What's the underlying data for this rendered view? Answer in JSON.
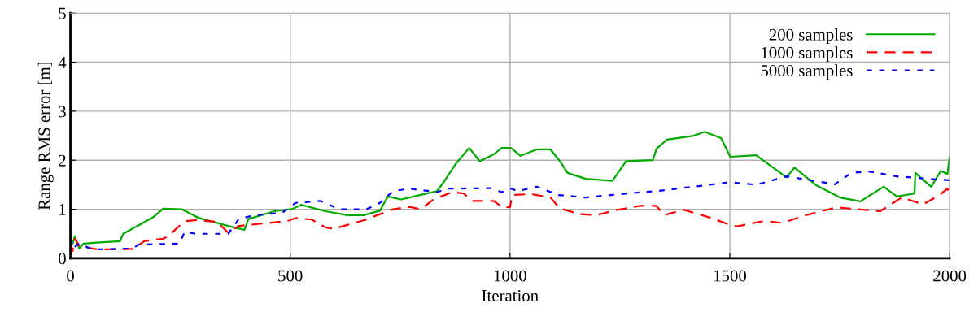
{
  "chart_data": {
    "type": "line",
    "xlabel": "Iteration",
    "ylabel": "Range RMS error [m]",
    "xlim": [
      0,
      2000
    ],
    "ylim": [
      0,
      5
    ],
    "xticks": [
      0,
      500,
      1000,
      1500,
      2000
    ],
    "yticks": [
      0,
      1,
      2,
      3,
      4,
      5
    ],
    "grid": true,
    "legend": "top right",
    "marker": "none",
    "series": [
      {
        "name": "200 samples",
        "color": "#00aa00",
        "line_style": "solid",
        "x": [
          0,
          5,
          10,
          20,
          30,
          60,
          113,
          120,
          187,
          211,
          253,
          290,
          359,
          396,
          405,
          464,
          506,
          525,
          580,
          630,
          667,
          704,
          722,
          752,
          834,
          852,
          876,
          907,
          931,
          963,
          981,
          1002,
          1024,
          1061,
          1092,
          1116,
          1131,
          1172,
          1233,
          1264,
          1325,
          1333,
          1357,
          1418,
          1443,
          1480,
          1501,
          1560,
          1629,
          1647,
          1695,
          1750,
          1797,
          1850,
          1880,
          1920,
          1922,
          1958,
          1980,
          1995,
          2000
        ],
        "values": [
          0.4,
          0.3,
          0.45,
          0.2,
          0.3,
          0.32,
          0.35,
          0.5,
          0.83,
          1.01,
          1.0,
          0.83,
          0.66,
          0.58,
          0.8,
          0.96,
          1.01,
          1.09,
          0.96,
          0.88,
          0.88,
          0.97,
          1.26,
          1.2,
          1.37,
          1.59,
          1.92,
          2.25,
          1.98,
          2.12,
          2.25,
          2.25,
          2.09,
          2.22,
          2.22,
          1.95,
          1.74,
          1.62,
          1.58,
          1.98,
          2.0,
          2.23,
          2.42,
          2.5,
          2.58,
          2.45,
          2.07,
          2.1,
          1.65,
          1.85,
          1.5,
          1.24,
          1.16,
          1.46,
          1.26,
          1.32,
          1.74,
          1.46,
          1.78,
          1.72,
          2.07
        ]
      },
      {
        "name": "1000 samples",
        "color": "#ff0000",
        "line_style": "dashed",
        "x": [
          0,
          5,
          10,
          20,
          63,
          142,
          168,
          211,
          224,
          244,
          263,
          290,
          334,
          359,
          383,
          494,
          512,
          549,
          580,
          599,
          630,
          673,
          704,
          734,
          771,
          797,
          826,
          869,
          895,
          913,
          963,
          981,
          1000,
          1005,
          1048,
          1092,
          1113,
          1159,
          1196,
          1246,
          1296,
          1333,
          1351,
          1394,
          1455,
          1501,
          1517,
          1577,
          1620,
          1669,
          1743,
          1842,
          1891,
          1940,
          1977,
          1995,
          2000
        ],
        "values": [
          0.3,
          0.15,
          0.4,
          0.25,
          0.18,
          0.19,
          0.35,
          0.4,
          0.46,
          0.63,
          0.76,
          0.78,
          0.74,
          0.52,
          0.66,
          0.76,
          0.82,
          0.79,
          0.63,
          0.6,
          0.68,
          0.79,
          0.9,
          1.0,
          1.05,
          1.0,
          1.2,
          1.35,
          1.32,
          1.17,
          1.17,
          1.05,
          1.04,
          1.29,
          1.31,
          1.24,
          1.02,
          0.9,
          0.88,
          0.99,
          1.07,
          1.07,
          0.88,
          0.99,
          0.83,
          0.68,
          0.65,
          0.76,
          0.72,
          0.87,
          1.04,
          0.96,
          1.24,
          1.1,
          1.29,
          1.42,
          1.33
        ]
      },
      {
        "name": "5000 samples",
        "color": "#0000ff",
        "line_style": "dotted",
        "x": [
          0,
          5,
          20,
          50,
          142,
          155,
          248,
          260,
          285,
          359,
          383,
          420,
          482,
          512,
          568,
          612,
          673,
          704,
          734,
          771,
          834,
          858,
          956,
          981,
          1002,
          1018,
          1061,
          1110,
          1172,
          1264,
          1333,
          1418,
          1499,
          1560,
          1629,
          1739,
          1776,
          1816,
          1880,
          1999
        ],
        "values": [
          0.4,
          0.2,
          0.3,
          0.18,
          0.2,
          0.28,
          0.3,
          0.54,
          0.5,
          0.5,
          0.8,
          0.88,
          0.93,
          1.13,
          1.17,
          1.0,
          1.0,
          1.13,
          1.37,
          1.42,
          1.35,
          1.42,
          1.43,
          1.35,
          1.42,
          1.37,
          1.46,
          1.29,
          1.24,
          1.32,
          1.37,
          1.46,
          1.55,
          1.5,
          1.67,
          1.51,
          1.74,
          1.77,
          1.67,
          1.59
        ]
      }
    ]
  }
}
